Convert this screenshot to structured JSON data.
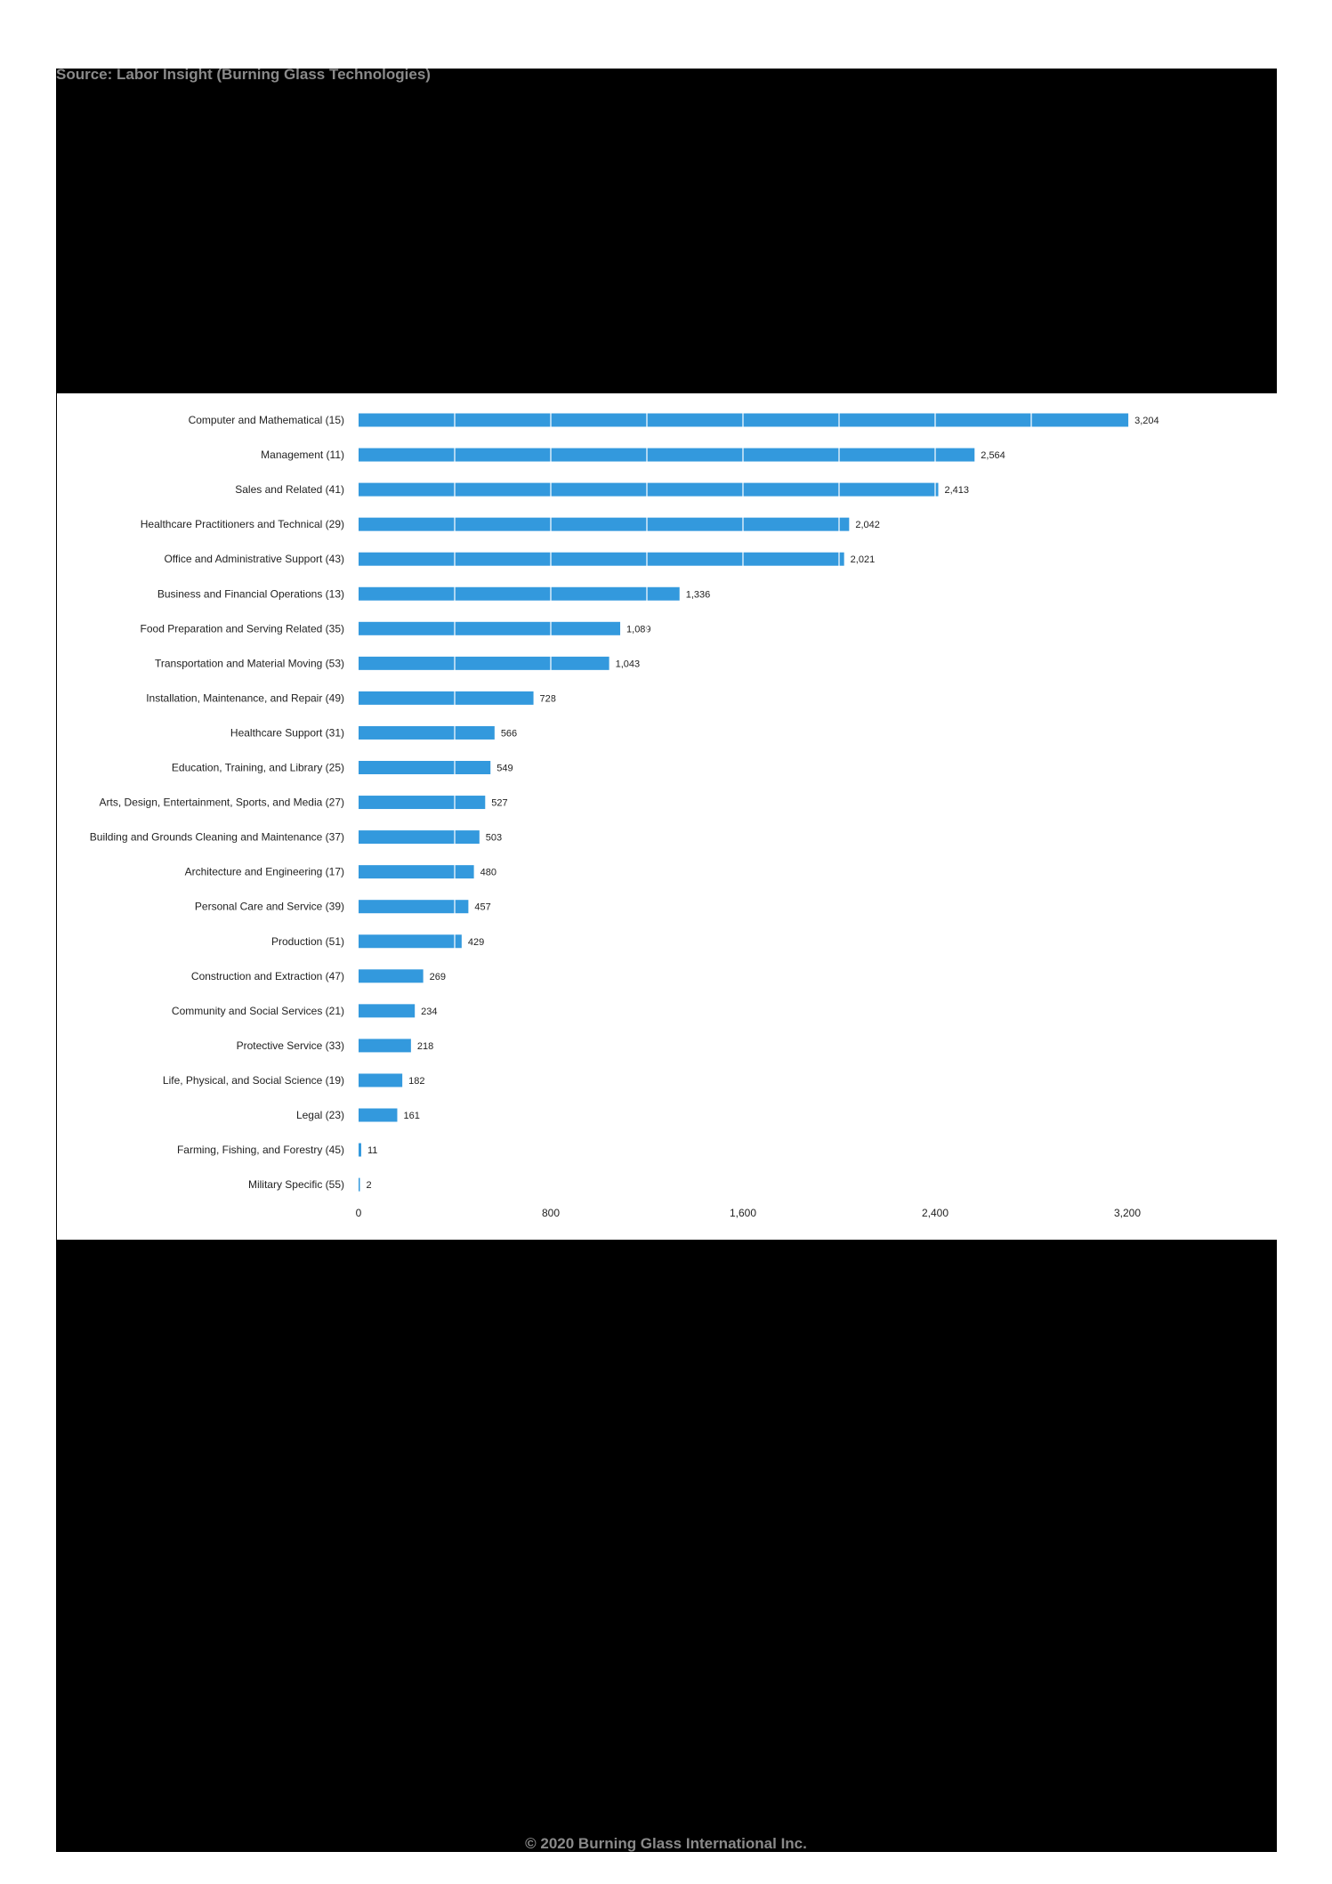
{
  "header": {
    "source": "Source: Labor Insight (Burning Glass Technologies)"
  },
  "footer": {
    "copyright": "© 2020 Burning Glass International Inc."
  },
  "colors": {
    "bar": "#3399dd",
    "text": "#222222"
  },
  "chart_data": {
    "type": "bar",
    "orientation": "horizontal",
    "title": "",
    "xlabel": "",
    "ylabel": "",
    "xlim": [
      0,
      3200
    ],
    "x_ticks": [
      "0",
      "800",
      "1,600",
      "2,400",
      "3,200"
    ],
    "grid": false,
    "categories": [
      "Computer and Mathematical (15)",
      "Management (11)",
      "Sales and Related (41)",
      "Healthcare Practitioners and Technical (29)",
      "Office and Administrative Support (43)",
      "Business and Financial Operations (13)",
      "Food Preparation and Serving Related (35)",
      "Transportation and Material Moving (53)",
      "Installation, Maintenance, and Repair (49)",
      "Healthcare Support (31)",
      "Education, Training, and Library (25)",
      "Arts, Design, Entertainment, Sports, and Media (27)",
      "Building and Grounds Cleaning and Maintenance (37)",
      "Architecture and Engineering (17)",
      "Personal Care and Service (39)",
      "Production (51)",
      "Construction and Extraction (47)",
      "Community and Social Services (21)",
      "Protective Service (33)",
      "Life, Physical, and Social Science (19)",
      "Legal (23)",
      "Farming, Fishing, and Forestry (45)",
      "Military Specific (55)"
    ],
    "values": [
      3204,
      2564,
      2413,
      2042,
      2021,
      1336,
      1089,
      1043,
      728,
      566,
      549,
      527,
      503,
      480,
      457,
      429,
      269,
      234,
      218,
      182,
      161,
      11,
      2
    ],
    "value_labels": [
      "3,204",
      "2,564",
      "2,413",
      "2,042",
      "2,021",
      "1,336",
      "1,089",
      "1,043",
      "728",
      "566",
      "549",
      "527",
      "503",
      "480",
      "457",
      "429",
      "269",
      "234",
      "218",
      "182",
      "161",
      "11",
      "2"
    ]
  }
}
